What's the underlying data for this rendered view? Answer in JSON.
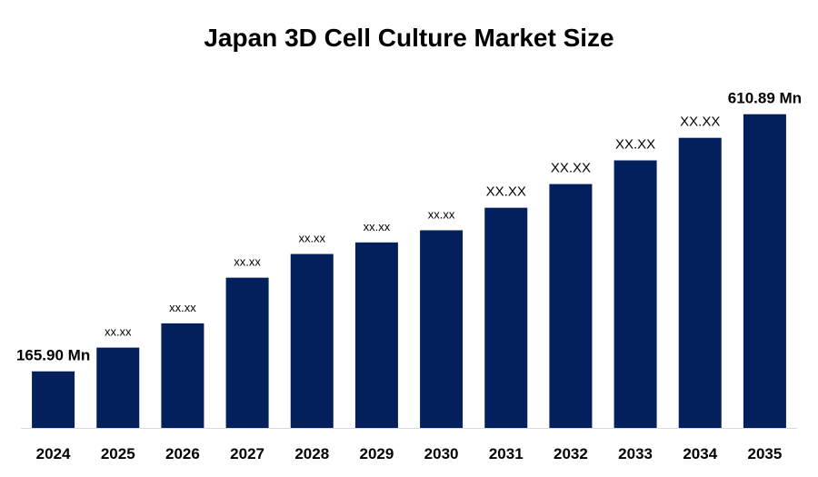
{
  "chart_data": {
    "type": "bar",
    "title": "Japan 3D Cell Culture Market Size",
    "categories": [
      "2024",
      "2025",
      "2026",
      "2027",
      "2028",
      "2029",
      "2030",
      "2031",
      "2032",
      "2033",
      "2034",
      "2035"
    ],
    "values": [
      165.9,
      207,
      249,
      328,
      369,
      389,
      410,
      449,
      490,
      531,
      570,
      610.89
    ],
    "value_labels": [
      "165.90 Mn",
      "xx.xx",
      "xx.xx",
      "xx.xx",
      "xx.xx",
      "xx.xx",
      "xx.xx",
      "XX.XX",
      "XX.XX",
      "XX.XX",
      "XX.XX",
      "610.89 Mn"
    ],
    "color": "#03205c",
    "ylim": [
      68,
      667
    ]
  }
}
